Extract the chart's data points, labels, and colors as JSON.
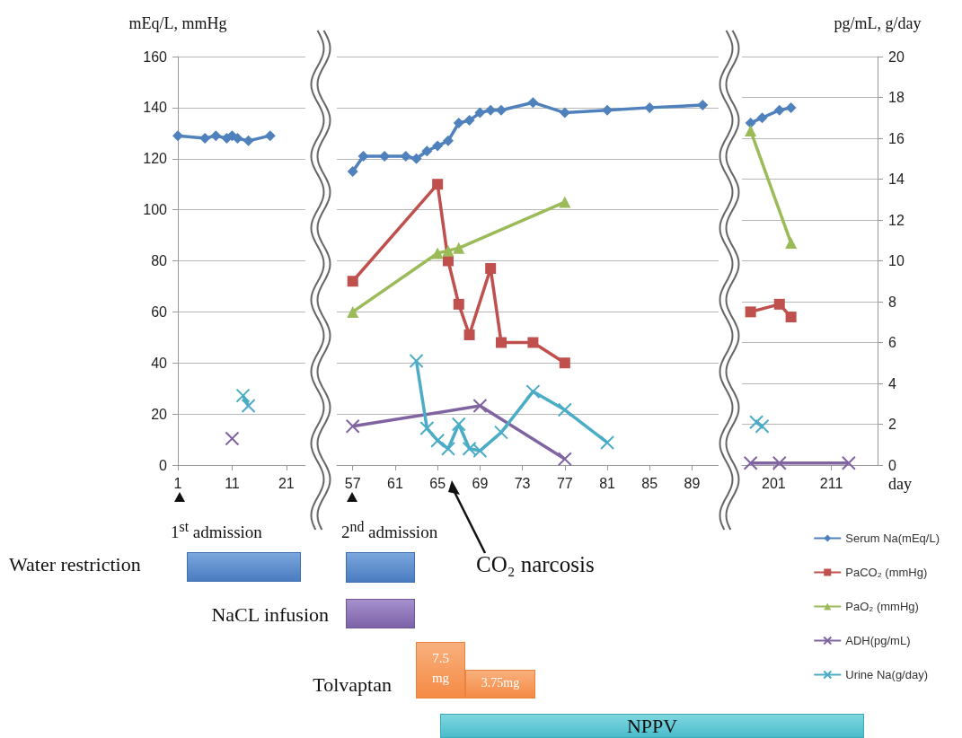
{
  "chart_data": [
    {
      "type": "line",
      "ylabel": "mEq/L, mmHg",
      "xlim": [
        1,
        24.5
      ],
      "xticks": [
        1,
        11,
        21
      ],
      "ylim": [
        0,
        160
      ],
      "yticks": [
        0,
        20,
        40,
        60,
        80,
        100,
        120,
        140,
        160
      ],
      "y2lim": [
        0,
        20
      ],
      "grid": "y",
      "legend": false,
      "annotations": [
        "1$^{st}$ admission"
      ],
      "series": [
        {
          "color": "#4f81bd",
          "marker": "diamond",
          "x": [
            1,
            6,
            8,
            10,
            11,
            12,
            14,
            18
          ],
          "values": [
            129,
            128,
            129,
            128,
            129,
            128,
            127,
            129
          ]
        },
        {
          "color": "#4bacc6",
          "marker": "cross",
          "axis": "y2",
          "x": [
            13,
            14
          ],
          "values": [
            3.4,
            2.9
          ]
        },
        {
          "color": "#8064a2",
          "marker": "cross",
          "axis": "y2",
          "x": [
            11
          ],
          "values": [
            1.3
          ]
        }
      ]
    },
    {
      "type": "line",
      "xlim": [
        55.5,
        91.5
      ],
      "xticks": [
        57,
        61,
        65,
        69,
        73,
        77,
        81,
        85,
        89
      ],
      "ylim": [
        0,
        160
      ],
      "yticks": [
        0,
        20,
        40,
        60,
        80,
        100,
        120,
        140,
        160
      ],
      "y2lim": [
        0,
        20
      ],
      "grid": "y",
      "legend": false,
      "tick_labels": "x",
      "annotations": [
        "2$^{nd}$ admission",
        "CO₂ narcosis",
        "Water restriction",
        "NaCL infusion",
        "Tolvaptan",
        "7.5 mg",
        "3.75mg",
        "NPPV"
      ],
      "series": [
        {
          "color": "#4f81bd",
          "marker": "diamond",
          "x": [
            57,
            58,
            60,
            62,
            63,
            64,
            65,
            66,
            67,
            68,
            69,
            70,
            71,
            74,
            77,
            81,
            85,
            90
          ],
          "values": [
            115,
            121,
            121,
            121,
            120,
            123,
            125,
            127,
            134,
            135,
            138,
            139,
            139,
            142,
            138,
            139,
            140,
            141
          ]
        },
        {
          "color": "#c0504d",
          "marker": "square",
          "x": [
            57,
            65,
            66,
            67,
            68,
            70,
            71,
            74,
            77
          ],
          "values": [
            72,
            110,
            80,
            63,
            51,
            77,
            48,
            48,
            40
          ]
        },
        {
          "color": "#9bbb59",
          "marker": "triangle",
          "x": [
            57,
            65,
            66,
            67,
            77
          ],
          "values": [
            60,
            83,
            84,
            85,
            103
          ]
        },
        {
          "color": "#8064a2",
          "marker": "cross",
          "axis": "y2",
          "x": [
            57,
            69,
            77
          ],
          "values": [
            1.9,
            2.9,
            0.3
          ]
        },
        {
          "color": "#4bacc6",
          "marker": "cross",
          "axis": "y2",
          "x": [
            63,
            64,
            65,
            66,
            67,
            68,
            69,
            71,
            74,
            77,
            81
          ],
          "values": [
            5.1,
            1.8,
            1.2,
            0.8,
            2.0,
            0.8,
            0.7,
            1.6,
            3.6,
            2.7,
            1.1
          ]
        }
      ]
    },
    {
      "type": "line",
      "xlabel": "day",
      "y2label": "pg/mL, g/day",
      "xlim": [
        195.5,
        219
      ],
      "xticks": [
        201,
        211
      ],
      "ylim": [
        0,
        160
      ],
      "y2lim": [
        0,
        20
      ],
      "y2ticks": [
        0,
        2,
        4,
        6,
        8,
        10,
        12,
        14,
        16,
        18,
        20
      ],
      "grid": "y",
      "legend": "bottom right",
      "series": [
        {
          "name": "Serum Na(mEq/L)",
          "color": "#4f81bd",
          "marker": "diamond",
          "x": [
            197,
            199,
            202,
            204
          ],
          "values": [
            134,
            136,
            139,
            140
          ]
        },
        {
          "name": "PaCO₂ (mmHg)",
          "color": "#c0504d",
          "marker": "square",
          "x": [
            197,
            202,
            204
          ],
          "values": [
            60,
            63,
            58
          ]
        },
        {
          "name": "PaO₂ (mmHg)",
          "color": "#9bbb59",
          "marker": "triangle",
          "x": [
            197,
            204
          ],
          "values": [
            131,
            87
          ]
        },
        {
          "name": "ADH(pg/mL)",
          "color": "#8064a2",
          "marker": "cross",
          "axis": "y2",
          "x": [
            197,
            202,
            214
          ],
          "values": [
            0.1,
            0.1,
            0.1
          ]
        },
        {
          "name": "Urine Na(g/day)",
          "color": "#4bacc6",
          "marker": "cross",
          "axis": "y2",
          "x": [
            198,
            199
          ],
          "values": [
            2.1,
            1.9
          ]
        }
      ]
    }
  ]
}
